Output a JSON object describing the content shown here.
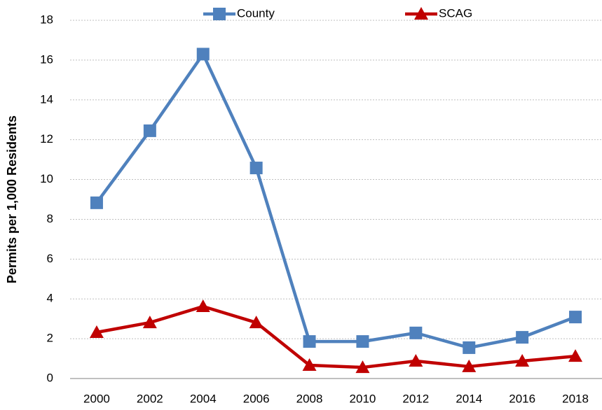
{
  "chart_data": {
    "type": "line",
    "y_label": "Permits per 1,000 Residents",
    "categories": [
      "2000",
      "2002",
      "2004",
      "2006",
      "2008",
      "2010",
      "2012",
      "2014",
      "2016",
      "2018"
    ],
    "series": [
      {
        "name": "County",
        "color": "#4f81bd",
        "marker": "square",
        "values": [
          8.83,
          12.45,
          16.3,
          10.58,
          1.86,
          1.86,
          2.29,
          1.55,
          2.07,
          3.09
        ]
      },
      {
        "name": "SCAG",
        "color": "#c00000",
        "marker": "triangle",
        "values": [
          2.32,
          2.81,
          3.62,
          2.81,
          0.67,
          0.56,
          0.88,
          0.6,
          0.88,
          1.12
        ]
      }
    ],
    "ylim": [
      0,
      18
    ],
    "yticks": [
      0,
      2,
      4,
      6,
      8,
      10,
      12,
      14,
      16,
      18
    ],
    "grid": true
  }
}
